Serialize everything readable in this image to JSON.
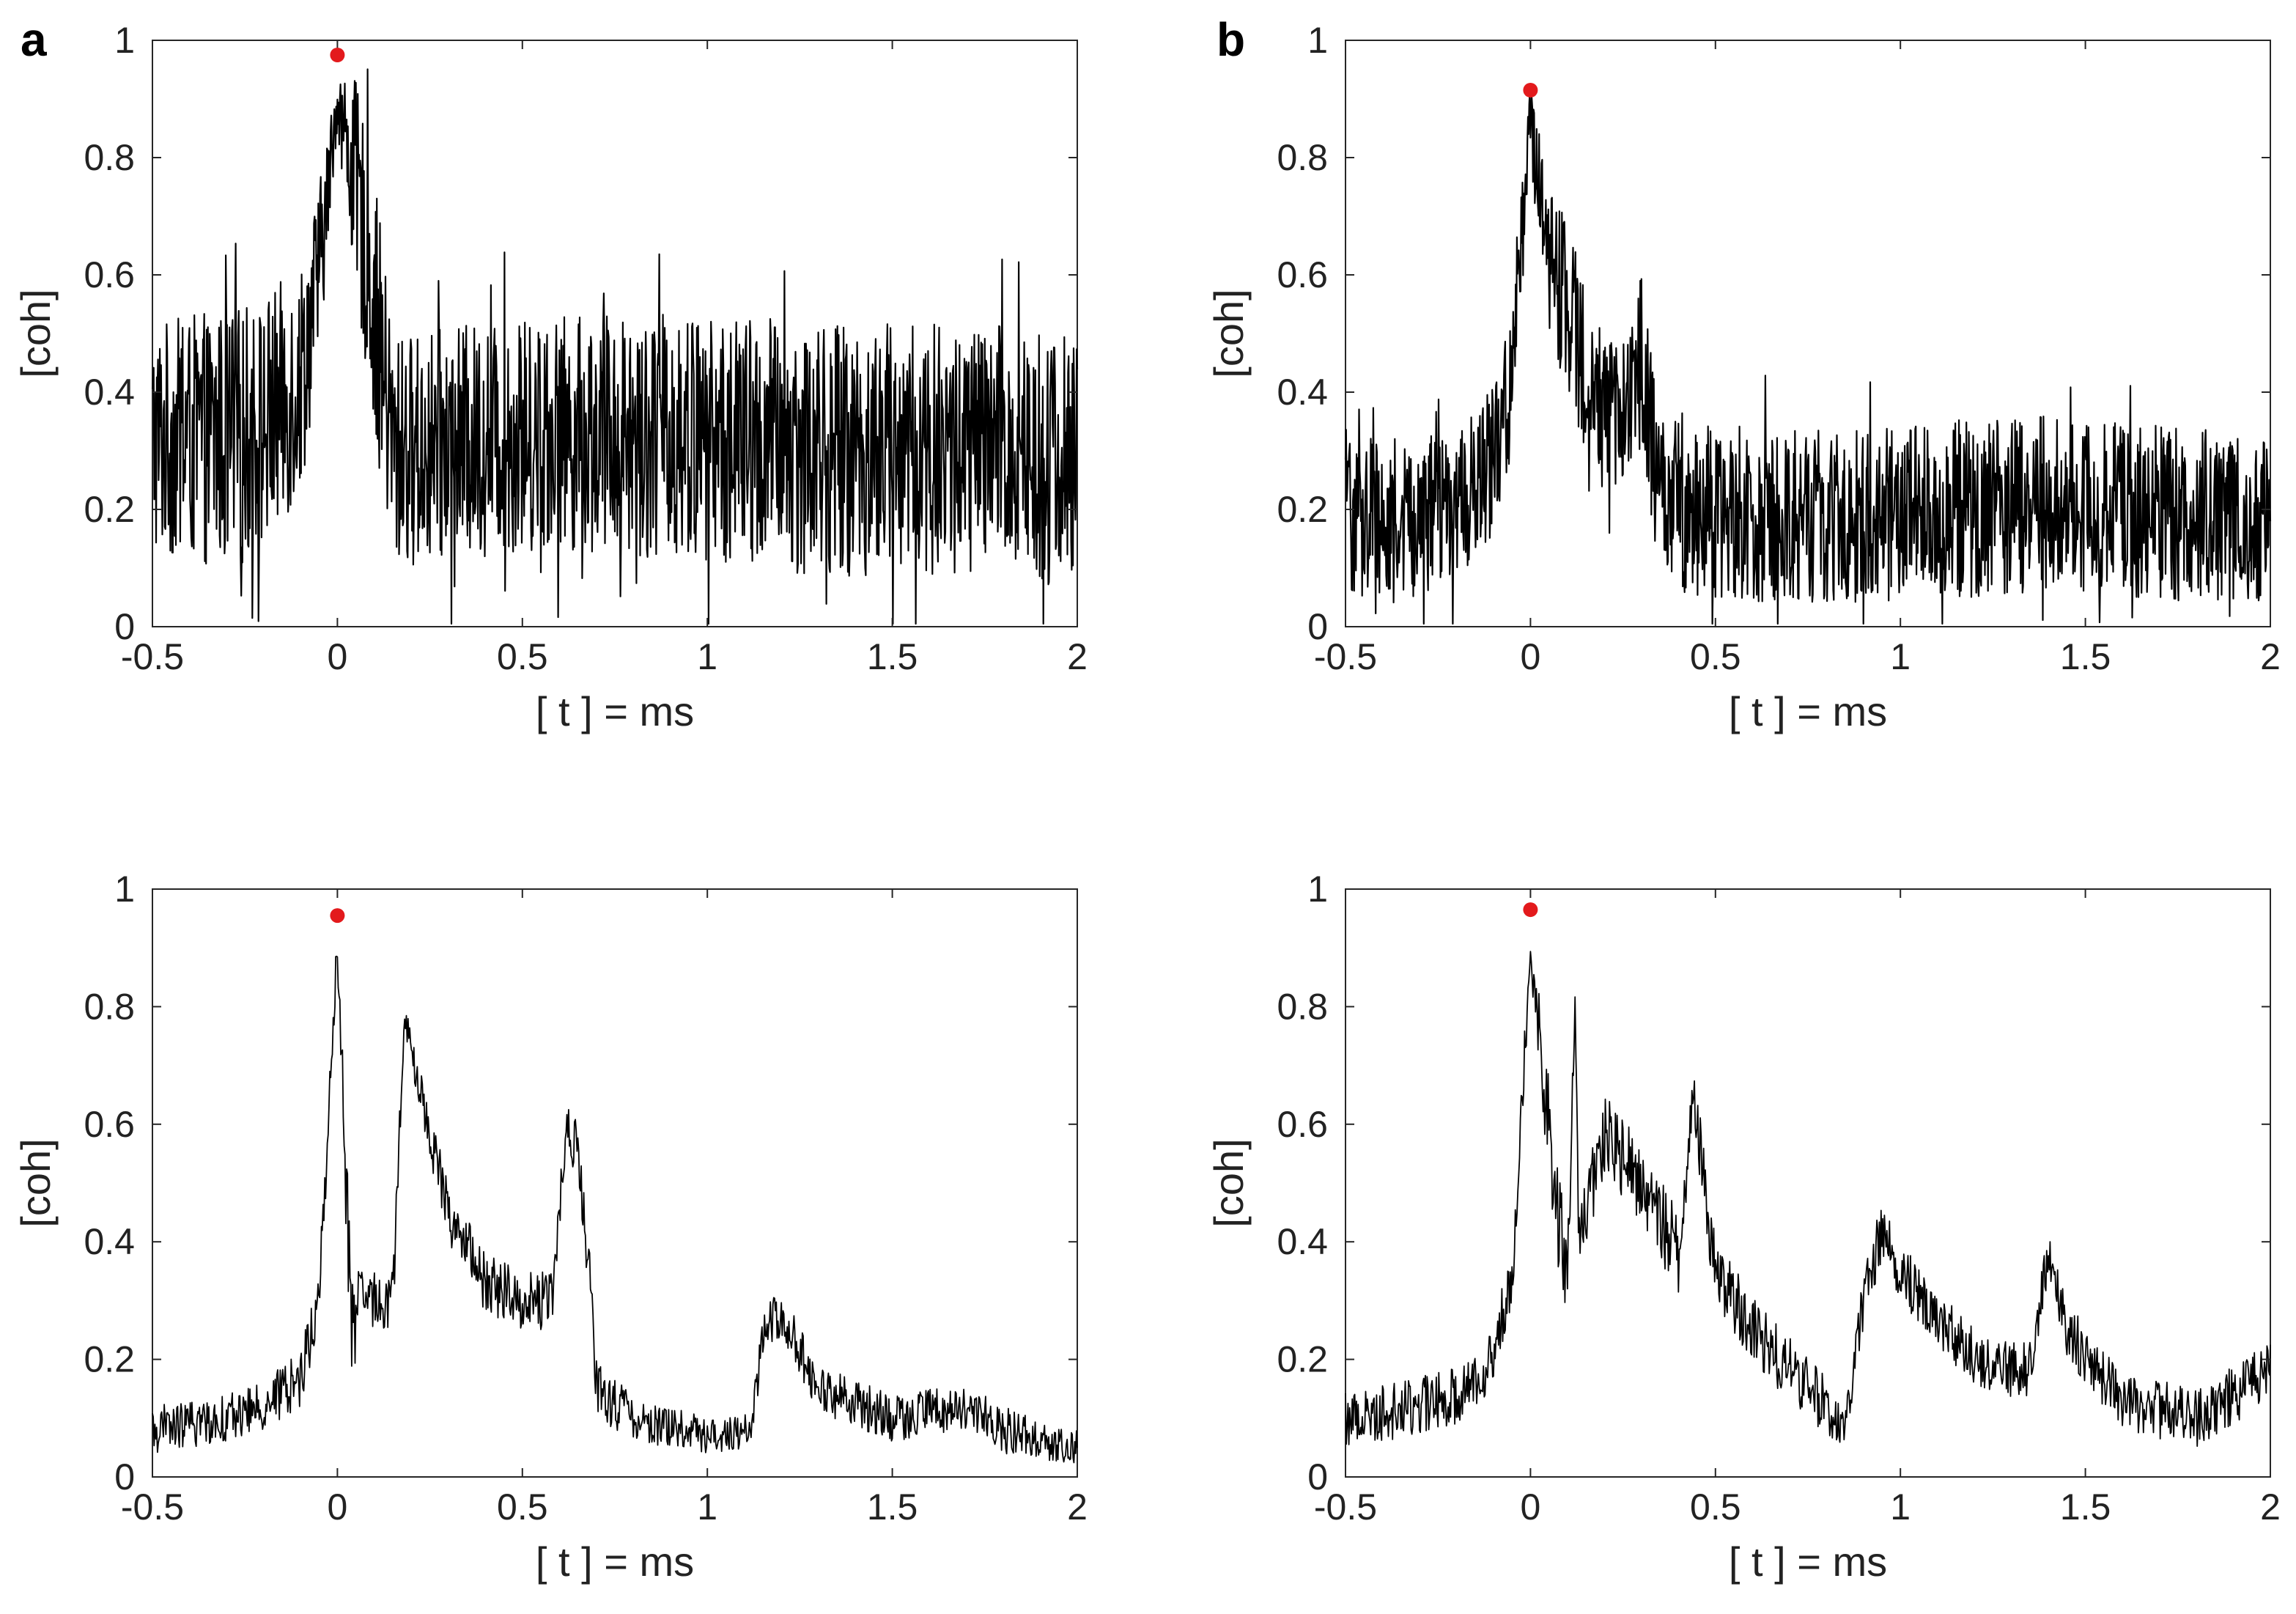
{
  "panel_labels": [
    "a",
    "b"
  ],
  "chart_data": [
    {
      "type": "line",
      "panel": "a",
      "title": "",
      "xlabel": "[ t ] = ms",
      "ylabel": "[coh]",
      "xlim": [
        -0.5,
        2
      ],
      "ylim": [
        0,
        1
      ],
      "xticks": [
        "-0.5",
        "0",
        "0.5",
        "1",
        "1.5",
        "2"
      ],
      "yticks": [
        "0",
        "0.2",
        "0.4",
        "0.6",
        "0.8",
        "1"
      ],
      "line_color": "#000000",
      "style": "dense-noise",
      "envelope_points": {
        "t": [
          -0.5,
          -0.3,
          -0.2,
          -0.1,
          -0.05,
          0,
          0.05,
          0.1,
          0.15,
          0.2,
          0.4,
          0.6,
          0.8,
          1.0,
          1.2,
          1.4,
          1.6,
          1.8,
          2.0
        ],
        "mean": [
          0.32,
          0.32,
          0.34,
          0.42,
          0.6,
          0.9,
          0.75,
          0.55,
          0.3,
          0.3,
          0.32,
          0.33,
          0.33,
          0.32,
          0.31,
          0.3,
          0.3,
          0.3,
          0.28
        ],
        "amplitude": [
          0.2,
          0.22,
          0.22,
          0.2,
          0.15,
          0.05,
          0.18,
          0.22,
          0.2,
          0.2,
          0.2,
          0.2,
          0.21,
          0.21,
          0.22,
          0.22,
          0.22,
          0.22,
          0.22
        ]
      },
      "marker": {
        "x": 0,
        "y": 0.975,
        "color": "#e31a1c"
      }
    },
    {
      "type": "line",
      "panel": "b",
      "title": "",
      "xlabel": "[ t ] = ms",
      "ylabel": "[coh]",
      "xlim": [
        -0.5,
        2
      ],
      "ylim": [
        0,
        1
      ],
      "xticks": [
        "-0.5",
        "0",
        "0.5",
        "1",
        "1.5",
        "2"
      ],
      "yticks": [
        "0",
        "0.2",
        "0.4",
        "0.6",
        "0.8",
        "1"
      ],
      "line_color": "#000000",
      "style": "dense-noise",
      "envelope_points": {
        "t": [
          -0.5,
          -0.3,
          -0.2,
          -0.1,
          -0.05,
          0,
          0.05,
          0.1,
          0.15,
          0.2,
          0.25,
          0.3,
          0.35,
          0.4,
          0.6,
          0.8,
          1.0,
          1.2,
          1.4,
          1.6,
          1.8,
          2.0
        ],
        "mean": [
          0.2,
          0.18,
          0.2,
          0.28,
          0.42,
          0.88,
          0.62,
          0.55,
          0.45,
          0.35,
          0.38,
          0.45,
          0.22,
          0.2,
          0.19,
          0.19,
          0.19,
          0.2,
          0.21,
          0.2,
          0.19,
          0.18
        ],
        "amplitude": [
          0.15,
          0.13,
          0.13,
          0.13,
          0.12,
          0.05,
          0.12,
          0.15,
          0.15,
          0.13,
          0.13,
          0.15,
          0.13,
          0.15,
          0.15,
          0.15,
          0.15,
          0.15,
          0.15,
          0.15,
          0.15,
          0.14
        ]
      },
      "marker": {
        "x": 0,
        "y": 0.915,
        "color": "#e31a1c"
      }
    },
    {
      "type": "line",
      "panel": "a",
      "title": "",
      "xlabel": "[ t ] = ms",
      "ylabel": "[coh]",
      "xlim": [
        -0.5,
        2
      ],
      "ylim": [
        0,
        1
      ],
      "xticks": [
        "-0.5",
        "0",
        "0.5",
        "1",
        "1.5",
        "2"
      ],
      "yticks": [
        "0",
        "0.2",
        "0.4",
        "0.6",
        "0.8",
        "1"
      ],
      "line_color": "#000000",
      "style": "peaks",
      "envelope_points": {
        "t": [
          -0.5,
          -0.3,
          -0.2,
          -0.1,
          -0.05,
          0,
          0.02,
          0.04,
          0.06,
          0.1,
          0.15,
          0.18,
          0.2,
          0.3,
          0.4,
          0.5,
          0.58,
          0.62,
          0.65,
          0.68,
          0.7,
          0.8,
          1.0,
          1.12,
          1.15,
          1.2,
          1.3,
          1.5,
          1.7,
          1.8,
          2.0
        ],
        "mean": [
          0.08,
          0.1,
          0.12,
          0.17,
          0.3,
          0.9,
          0.55,
          0.25,
          0.3,
          0.3,
          0.3,
          0.78,
          0.72,
          0.45,
          0.33,
          0.3,
          0.3,
          0.6,
          0.55,
          0.35,
          0.15,
          0.1,
          0.07,
          0.08,
          0.25,
          0.28,
          0.15,
          0.1,
          0.12,
          0.08,
          0.05
        ],
        "amplitude": [
          0.04,
          0.04,
          0.04,
          0.05,
          0.05,
          0.04,
          0.1,
          0.1,
          0.05,
          0.05,
          0.05,
          0.03,
          0.04,
          0.05,
          0.05,
          0.05,
          0.05,
          0.04,
          0.05,
          0.05,
          0.05,
          0.04,
          0.03,
          0.03,
          0.04,
          0.04,
          0.04,
          0.04,
          0.04,
          0.04,
          0.03
        ]
      },
      "marker": {
        "x": 0,
        "y": 0.955,
        "color": "#e31a1c"
      }
    },
    {
      "type": "line",
      "panel": "b",
      "title": "",
      "xlabel": "[ t ] = ms",
      "ylabel": "[coh]",
      "xlim": [
        -0.5,
        2
      ],
      "ylim": [
        0,
        1
      ],
      "xticks": [
        "-0.5",
        "0",
        "0.5",
        "1",
        "1.5",
        "2"
      ],
      "yticks": [
        "0",
        "0.2",
        "0.4",
        "0.6",
        "0.8",
        "1"
      ],
      "line_color": "#000000",
      "style": "peaks",
      "envelope_points": {
        "t": [
          -0.5,
          -0.3,
          -0.2,
          -0.1,
          -0.05,
          0,
          0.05,
          0.08,
          0.1,
          0.12,
          0.13,
          0.15,
          0.2,
          0.3,
          0.4,
          0.44,
          0.46,
          0.5,
          0.6,
          0.8,
          0.85,
          0.9,
          0.95,
          1.0,
          1.2,
          1.35,
          1.4,
          1.45,
          1.6,
          1.8,
          2.0
        ],
        "mean": [
          0.1,
          0.12,
          0.14,
          0.2,
          0.35,
          0.9,
          0.6,
          0.4,
          0.35,
          0.8,
          0.4,
          0.45,
          0.58,
          0.5,
          0.38,
          0.65,
          0.55,
          0.35,
          0.25,
          0.12,
          0.08,
          0.3,
          0.42,
          0.35,
          0.2,
          0.18,
          0.38,
          0.25,
          0.13,
          0.1,
          0.18
        ],
        "amplitude": [
          0.05,
          0.05,
          0.05,
          0.05,
          0.06,
          0.04,
          0.1,
          0.1,
          0.08,
          0.04,
          0.08,
          0.08,
          0.07,
          0.07,
          0.07,
          0.04,
          0.06,
          0.06,
          0.06,
          0.05,
          0.04,
          0.05,
          0.05,
          0.05,
          0.05,
          0.05,
          0.04,
          0.05,
          0.05,
          0.05,
          0.05
        ]
      },
      "marker": {
        "x": 0,
        "y": 0.965,
        "color": "#e31a1c"
      }
    }
  ]
}
